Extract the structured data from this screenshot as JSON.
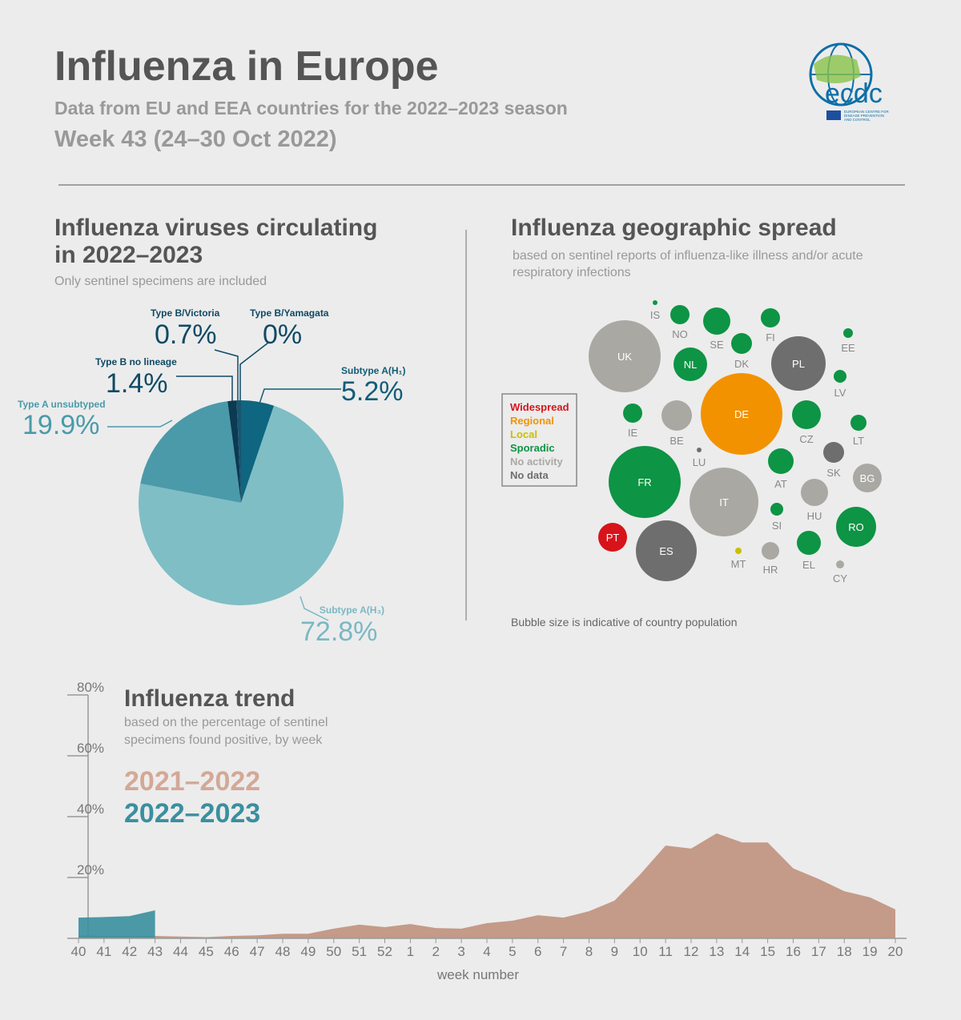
{
  "header": {
    "title": "Influenza in Europe",
    "subtitle": "Data from EU and EEA countries for the 2022–2023 season",
    "week": "Week 43 (24–30 Oct 2022)",
    "logo": {
      "acronym": "ecdc",
      "name": [
        "EUROPEAN CENTRE FOR",
        "DISEASE PREVENTION",
        "AND CONTROL"
      ]
    }
  },
  "chart_data": [
    {
      "type": "pie",
      "title": [
        "Influenza viruses circulating",
        "in 2022–2023"
      ],
      "subtitle": "Only sentinel specimens are included",
      "categories": [
        "Subtype A(H₁)",
        "Subtype A(H₃)",
        "Type A unsubtyped",
        "Type B no lineage",
        "Type B/Victoria",
        "Type B/Yamagata"
      ],
      "values": [
        5.2,
        72.8,
        19.9,
        1.4,
        0.7,
        0
      ],
      "value_labels": [
        "5.2%",
        "72.8%",
        "19.9%",
        "1.4%",
        "0.7%",
        "0%"
      ],
      "colors": [
        "#0e6680",
        "#7fbec5",
        "#4a9aaa",
        "#0b3a52",
        "#1a5570",
        "#1a5570"
      ],
      "label_colors": [
        "#135c78",
        "#7ab8c4",
        "#4a9aaa",
        "#0f4a66",
        "#0f4a66",
        "#0f4a66"
      ]
    },
    {
      "type": "bubble",
      "title": "Influenza geographic spread",
      "subtitle": [
        "based on sentinel reports of influenza-like illness and/or acute",
        "respiratory infections"
      ],
      "note": "Bubble size is indicative of country population",
      "legend": [
        {
          "name": "Widespread",
          "color": "#d7141a"
        },
        {
          "name": "Regional",
          "color": "#f39200"
        },
        {
          "name": "Local",
          "color": "#c9c000"
        },
        {
          "name": "Sporadic",
          "color": "#0d9444"
        },
        {
          "name": "No activity",
          "color": "#a9a8a3"
        },
        {
          "name": "No data",
          "color": "#6e6e6e"
        }
      ],
      "countries": [
        {
          "label": "IS",
          "status": "Sporadic"
        },
        {
          "label": "NO",
          "status": "Sporadic"
        },
        {
          "label": "SE",
          "status": "Sporadic"
        },
        {
          "label": "FI",
          "status": "Sporadic"
        },
        {
          "label": "EE",
          "status": "Sporadic"
        },
        {
          "label": "UK",
          "status": "No activity"
        },
        {
          "label": "NL",
          "status": "Sporadic"
        },
        {
          "label": "DK",
          "status": "Sporadic"
        },
        {
          "label": "PL",
          "status": "No data"
        },
        {
          "label": "LV",
          "status": "Sporadic"
        },
        {
          "label": "IE",
          "status": "Sporadic"
        },
        {
          "label": "BE",
          "status": "No activity"
        },
        {
          "label": "DE",
          "status": "Regional"
        },
        {
          "label": "CZ",
          "status": "Sporadic"
        },
        {
          "label": "LT",
          "status": "Sporadic"
        },
        {
          "label": "LU",
          "status": "No data"
        },
        {
          "label": "SK",
          "status": "No data"
        },
        {
          "label": "AT",
          "status": "Sporadic"
        },
        {
          "label": "BG",
          "status": "No activity"
        },
        {
          "label": "FR",
          "status": "Sporadic"
        },
        {
          "label": "IT",
          "status": "No activity"
        },
        {
          "label": "HU",
          "status": "No activity"
        },
        {
          "label": "SI",
          "status": "Sporadic"
        },
        {
          "label": "RO",
          "status": "Sporadic"
        },
        {
          "label": "PT",
          "status": "Widespread"
        },
        {
          "label": "ES",
          "status": "No data"
        },
        {
          "label": "MT",
          "status": "Local"
        },
        {
          "label": "HR",
          "status": "No activity"
        },
        {
          "label": "EL",
          "status": "Sporadic"
        },
        {
          "label": "CY",
          "status": "No activity"
        }
      ]
    },
    {
      "type": "area",
      "title": "Influenza trend",
      "subtitle": [
        "based on the percentage of sentinel",
        "specimens found positive, by week"
      ],
      "xlabel": "week number",
      "categories": [
        "40",
        "41",
        "42",
        "43",
        "44",
        "45",
        "46",
        "47",
        "48",
        "49",
        "50",
        "51",
        "52",
        "1",
        "2",
        "3",
        "4",
        "5",
        "6",
        "7",
        "8",
        "9",
        "10",
        "11",
        "12",
        "13",
        "14",
        "15",
        "16",
        "17",
        "18",
        "19",
        "20"
      ],
      "series": [
        {
          "name": "2021–2022",
          "color": "#c49a88",
          "label_color": "#d4a896",
          "values": [
            1,
            0.8,
            0.8,
            0.8,
            0.6,
            0.4,
            0.8,
            1.0,
            1.5,
            1.5,
            3.2,
            4.5,
            3.7,
            4.7,
            3.4,
            3.2,
            5,
            5.8,
            7.6,
            6.8,
            8.9,
            12.4,
            21,
            30.5,
            29.5,
            34.5,
            31.5,
            31.5,
            23,
            19.5,
            15.5,
            13.5,
            9.5
          ]
        },
        {
          "name": "2022–2023",
          "color": "#3a8fa0",
          "label_color": "#3a8fa0",
          "values": [
            6.8,
            7,
            7.3,
            9.2,
            null,
            null,
            null,
            null,
            null,
            null,
            null,
            null,
            null,
            null,
            null,
            null,
            null,
            null,
            null,
            null,
            null,
            null,
            null,
            null,
            null,
            null,
            null,
            null,
            null,
            null,
            null,
            null,
            null
          ]
        }
      ],
      "ylim": [
        0,
        80
      ],
      "yticks": [
        {
          "value": 20,
          "label": "20%"
        },
        {
          "value": 40,
          "label": "40%"
        },
        {
          "value": 60,
          "label": "60%"
        },
        {
          "value": 80,
          "label": "80%"
        }
      ]
    }
  ]
}
